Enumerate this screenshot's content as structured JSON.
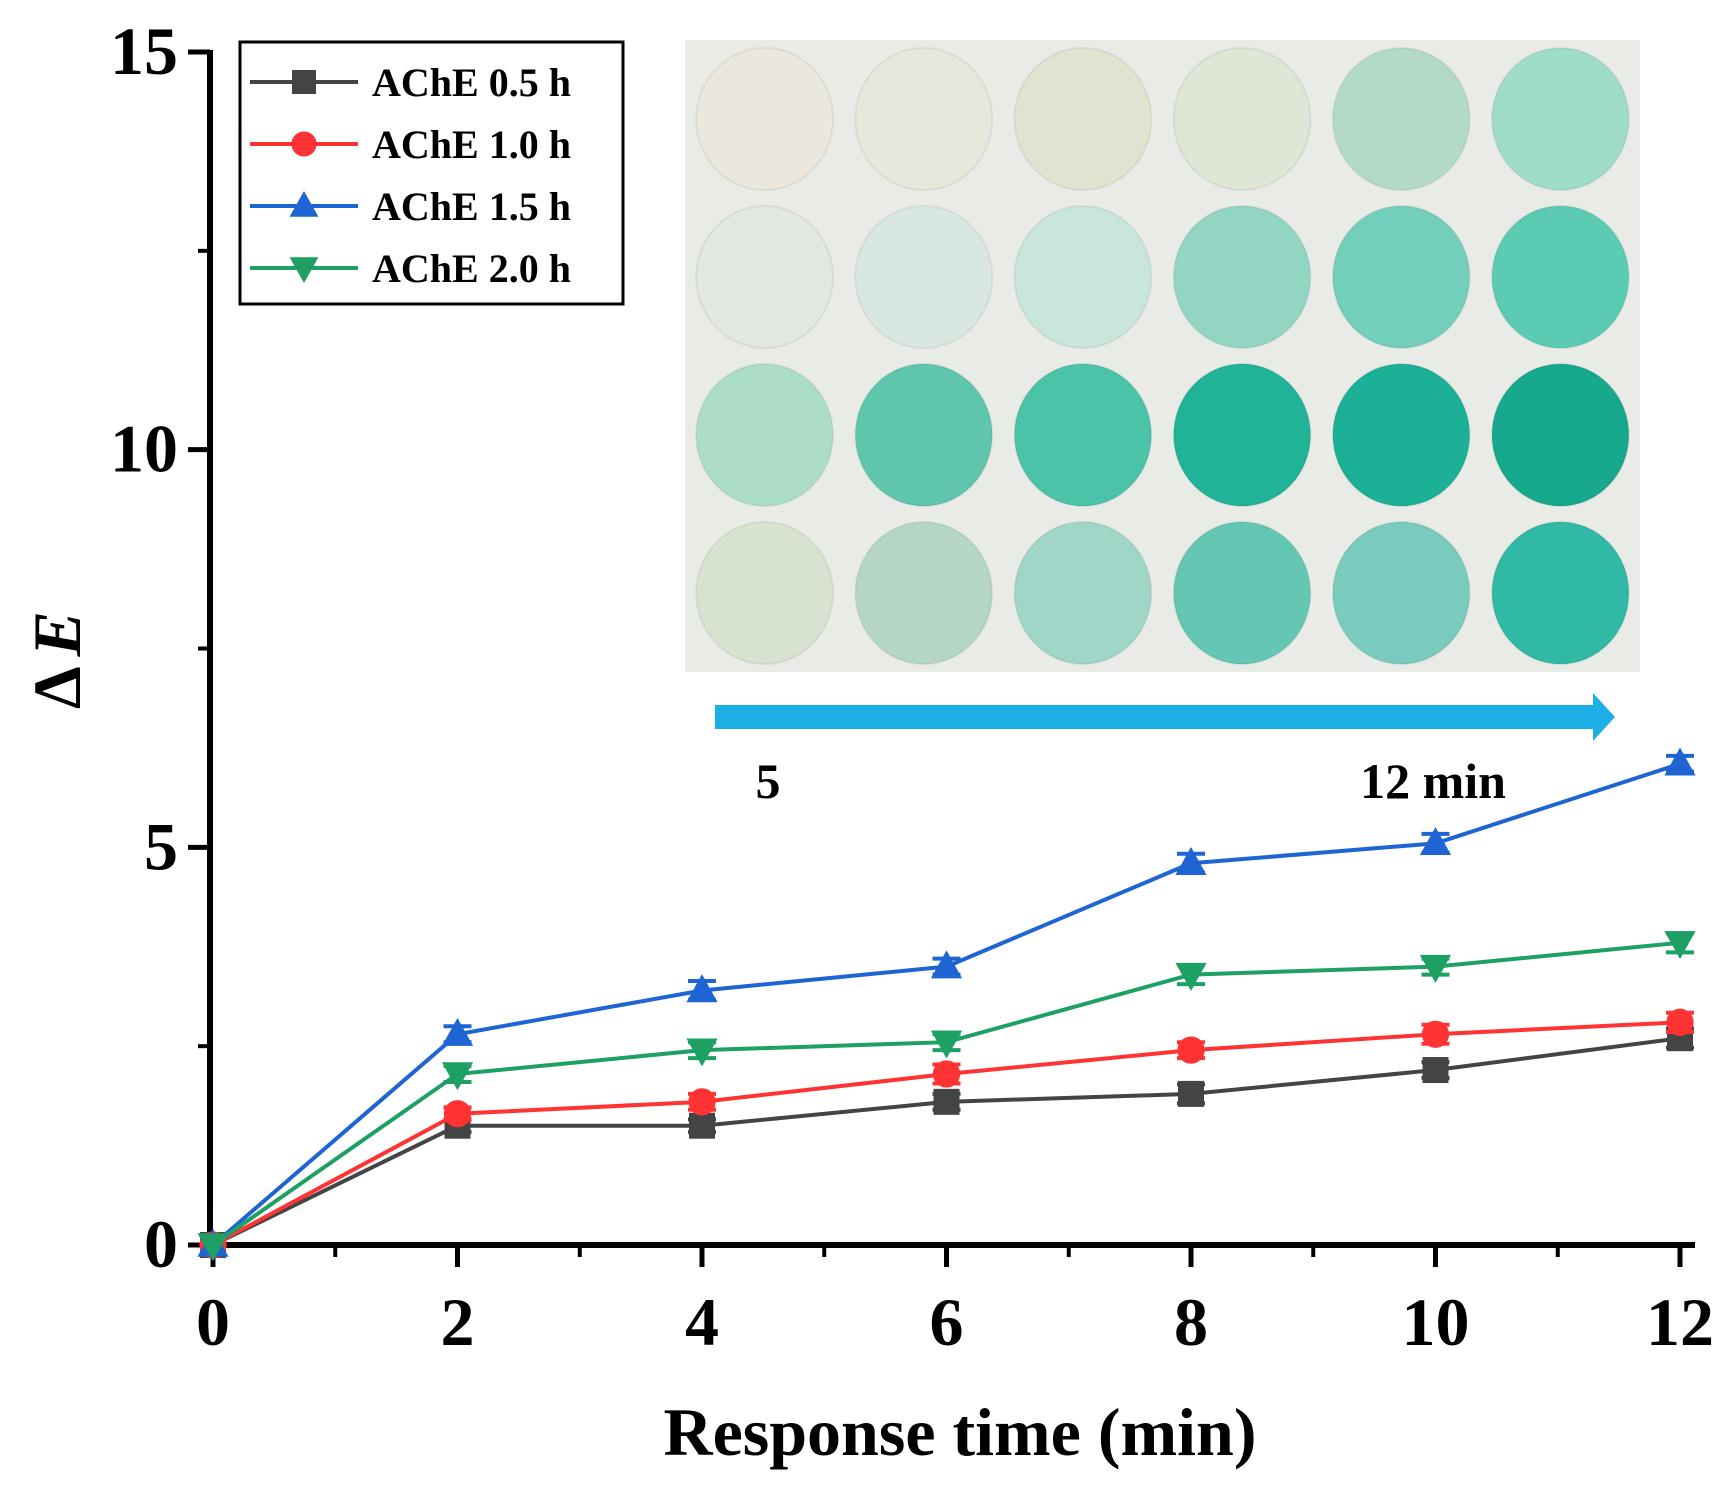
{
  "chart_data": {
    "type": "line",
    "title": "",
    "xlabel": "Response time (min)",
    "ylabel_symbol": "Δ",
    "ylabel_var": "E",
    "x": [
      0,
      2,
      4,
      6,
      8,
      10,
      12
    ],
    "xticks": [
      0,
      2,
      4,
      6,
      8,
      10,
      12
    ],
    "yticks": [
      0,
      5,
      10,
      15
    ],
    "xlim": [
      0,
      12.1
    ],
    "ylim": [
      0,
      15
    ],
    "legend_position": "top-left",
    "series": [
      {
        "name": "AChE 0.5 h",
        "color": "#444444",
        "marker": "square",
        "values": [
          0,
          1.5,
          1.5,
          1.8,
          1.9,
          2.2,
          2.6
        ],
        "errors": [
          0,
          0.08,
          0.08,
          0.1,
          0.12,
          0.1,
          0.12
        ]
      },
      {
        "name": "AChE 1.0 h",
        "color": "#ff3333",
        "marker": "circle",
        "values": [
          0,
          1.65,
          1.8,
          2.15,
          2.45,
          2.65,
          2.8
        ],
        "errors": [
          0,
          0.08,
          0.1,
          0.12,
          0.1,
          0.12,
          0.12
        ]
      },
      {
        "name": "AChE 1.5 h",
        "color": "#1e64d2",
        "marker": "triangle-up",
        "values": [
          0,
          2.65,
          3.2,
          3.5,
          4.8,
          5.05,
          6.05
        ],
        "errors": [
          0,
          0.1,
          0.12,
          0.1,
          0.12,
          0.12,
          0.1
        ]
      },
      {
        "name": "AChE 2.0 h",
        "color": "#1ea064",
        "marker": "triangle-down",
        "values": [
          0,
          2.15,
          2.45,
          2.55,
          3.4,
          3.5,
          3.8
        ],
        "errors": [
          0,
          0.1,
          0.1,
          0.1,
          0.12,
          0.1,
          0.12
        ]
      }
    ],
    "inset": {
      "description": "photo grid of colorimetric test discs, 4 rows x 6 columns",
      "label_start": "5",
      "label_end": "12 min",
      "rows": [
        [
          "#ece7dc",
          "#e7e8dc",
          "#dfe3d0",
          "#dee6d6",
          "#b3dac8",
          "#9fdcca"
        ],
        [
          "#e0e8df",
          "#d8e8e0",
          "#c8e6da",
          "#92d5c3",
          "#73cfbc",
          "#5ccbb4"
        ],
        [
          "#abddc8",
          "#5fc6ad",
          "#4bc3a9",
          "#20b398",
          "#1cb196",
          "#16a98c"
        ],
        [
          "#d7e2d1",
          "#b5d6c5",
          "#9fd6c7",
          "#64c7b4",
          "#78cbbd",
          "#30b9a5"
        ]
      ],
      "arrow_color": "#1eaee6"
    }
  }
}
